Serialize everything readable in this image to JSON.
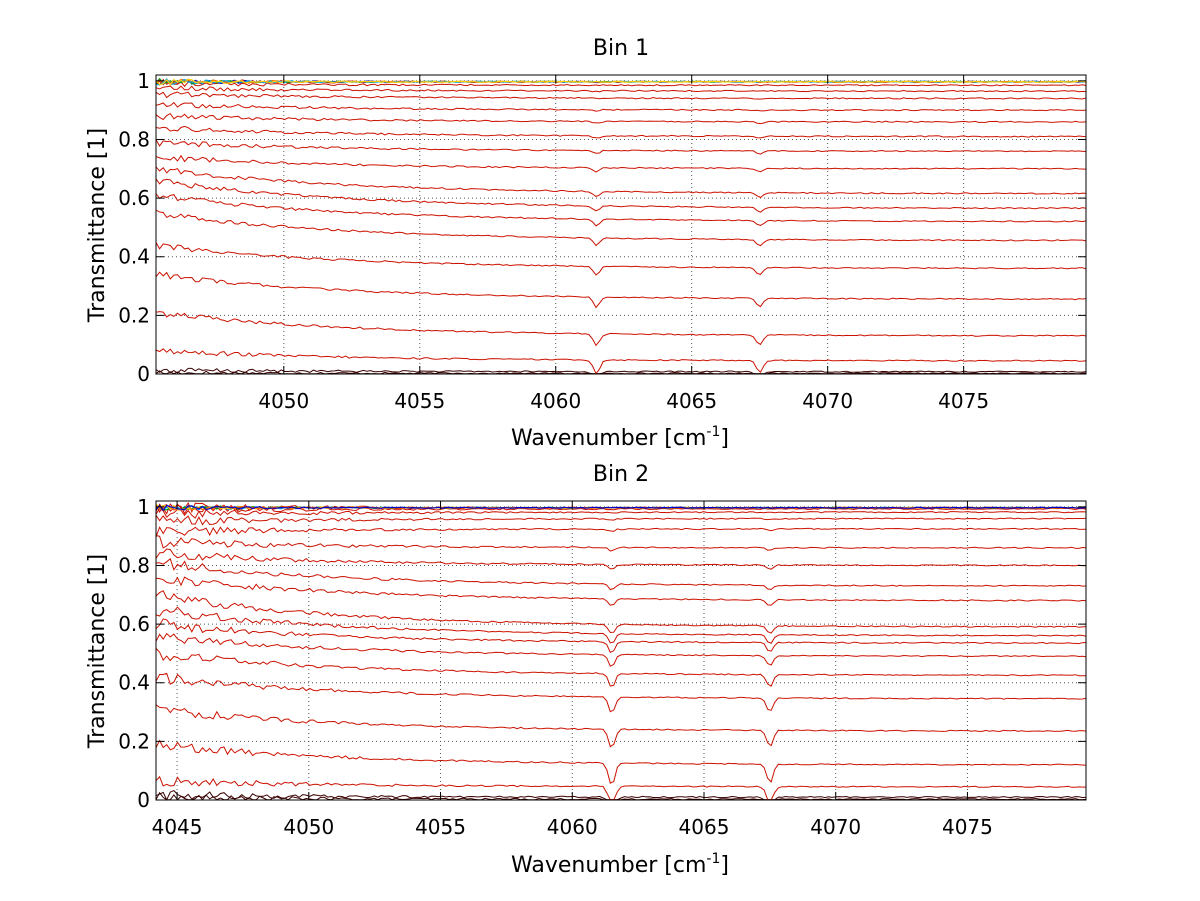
{
  "chart_data": [
    {
      "type": "line",
      "title": "Bin 1",
      "xlabel": "Wavenumber [cm",
      "xlabel_sup": "-1",
      "xlabel_tail": "]",
      "ylabel": "Transmittance [1]",
      "xlim": [
        4045.3,
        4079.5
      ],
      "ylim": [
        0,
        1.02
      ],
      "xticks": [
        4050,
        4055,
        4060,
        4065,
        4070,
        4075
      ],
      "xtick_labels": [
        "4050",
        "4055",
        "4060",
        "4065",
        "4070",
        "4075"
      ],
      "yticks": [
        0,
        0.2,
        0.4,
        0.6,
        0.8,
        1
      ],
      "ytick_labels": [
        "0",
        "0.2",
        "0.4",
        "0.6",
        "0.8",
        "1"
      ],
      "grid": true,
      "dip_features": [
        4061.5,
        4067.5
      ],
      "series_color": "#cc1100",
      "dark_series_color": "#3a0000",
      "series": [
        {
          "name": "s1",
          "start": 0.003,
          "end": 0.002
        },
        {
          "name": "s2",
          "start": 0.012,
          "end": 0.008
        },
        {
          "name": "s3",
          "start": 0.08,
          "end": 0.045
        },
        {
          "name": "s4",
          "start": 0.21,
          "end": 0.13
        },
        {
          "name": "s5",
          "start": 0.34,
          "end": 0.255
        },
        {
          "name": "s6",
          "start": 0.44,
          "end": 0.36
        },
        {
          "name": "s7",
          "start": 0.55,
          "end": 0.455
        },
        {
          "name": "s8",
          "start": 0.61,
          "end": 0.52
        },
        {
          "name": "s9",
          "start": 0.66,
          "end": 0.565
        },
        {
          "name": "s10",
          "start": 0.7,
          "end": 0.615
        },
        {
          "name": "s11",
          "start": 0.74,
          "end": 0.7
        },
        {
          "name": "s12",
          "start": 0.79,
          "end": 0.76
        },
        {
          "name": "s13",
          "start": 0.84,
          "end": 0.81
        },
        {
          "name": "s14",
          "start": 0.88,
          "end": 0.86
        },
        {
          "name": "s15",
          "start": 0.92,
          "end": 0.9
        },
        {
          "name": "s16",
          "start": 0.955,
          "end": 0.94
        },
        {
          "name": "s17",
          "start": 0.975,
          "end": 0.965
        },
        {
          "name": "s18",
          "start": 0.99,
          "end": 0.985
        },
        {
          "name": "s19",
          "start": 0.998,
          "end": 0.996
        }
      ],
      "top_cluster_colors": [
        "#0000cc",
        "#009900",
        "#ff6600",
        "#00aaee",
        "#ffcc00"
      ]
    },
    {
      "type": "line",
      "title": "Bin 2",
      "xlabel": "Wavenumber [cm",
      "xlabel_sup": "-1",
      "xlabel_tail": "]",
      "ylabel": "Transmittance [1]",
      "xlim": [
        4044.2,
        4079.5
      ],
      "ylim": [
        0,
        1.02
      ],
      "xticks": [
        4045,
        4050,
        4055,
        4060,
        4065,
        4070,
        4075
      ],
      "xtick_labels": [
        "4045",
        "4050",
        "4055",
        "4060",
        "4065",
        "4070",
        "4075"
      ],
      "yticks": [
        0,
        0.2,
        0.4,
        0.6,
        0.8,
        1
      ],
      "ytick_labels": [
        "0",
        "0.2",
        "0.4",
        "0.6",
        "0.8",
        "1"
      ],
      "grid": true,
      "dip_features": [
        4061.5,
        4067.5
      ],
      "series_color": "#cc1100",
      "dark_series_color": "#3a0000",
      "series": [
        {
          "name": "s1",
          "start": 0.004,
          "end": 0.003
        },
        {
          "name": "s2",
          "start": 0.015,
          "end": 0.01
        },
        {
          "name": "s3",
          "start": 0.065,
          "end": 0.045
        },
        {
          "name": "s4",
          "start": 0.19,
          "end": 0.12
        },
        {
          "name": "s5",
          "start": 0.31,
          "end": 0.235
        },
        {
          "name": "s6",
          "start": 0.42,
          "end": 0.345
        },
        {
          "name": "s7",
          "start": 0.5,
          "end": 0.425
        },
        {
          "name": "s8",
          "start": 0.56,
          "end": 0.49
        },
        {
          "name": "s9",
          "start": 0.6,
          "end": 0.535
        },
        {
          "name": "s10",
          "start": 0.65,
          "end": 0.56
        },
        {
          "name": "s11",
          "start": 0.7,
          "end": 0.59
        },
        {
          "name": "s12",
          "start": 0.76,
          "end": 0.68
        },
        {
          "name": "s13",
          "start": 0.81,
          "end": 0.73
        },
        {
          "name": "s14",
          "start": 0.84,
          "end": 0.8
        },
        {
          "name": "s15",
          "start": 0.88,
          "end": 0.86
        },
        {
          "name": "s16",
          "start": 0.915,
          "end": 0.925
        },
        {
          "name": "s17",
          "start": 0.95,
          "end": 0.96
        },
        {
          "name": "s18",
          "start": 0.975,
          "end": 0.982
        },
        {
          "name": "s19",
          "start": 0.99,
          "end": 0.993
        },
        {
          "name": "s20",
          "start": 0.998,
          "end": 0.997
        }
      ],
      "top_cluster_colors": [
        "#00aaee",
        "#009900",
        "#ffcc00",
        "#ff6600",
        "#0000cc"
      ]
    }
  ]
}
